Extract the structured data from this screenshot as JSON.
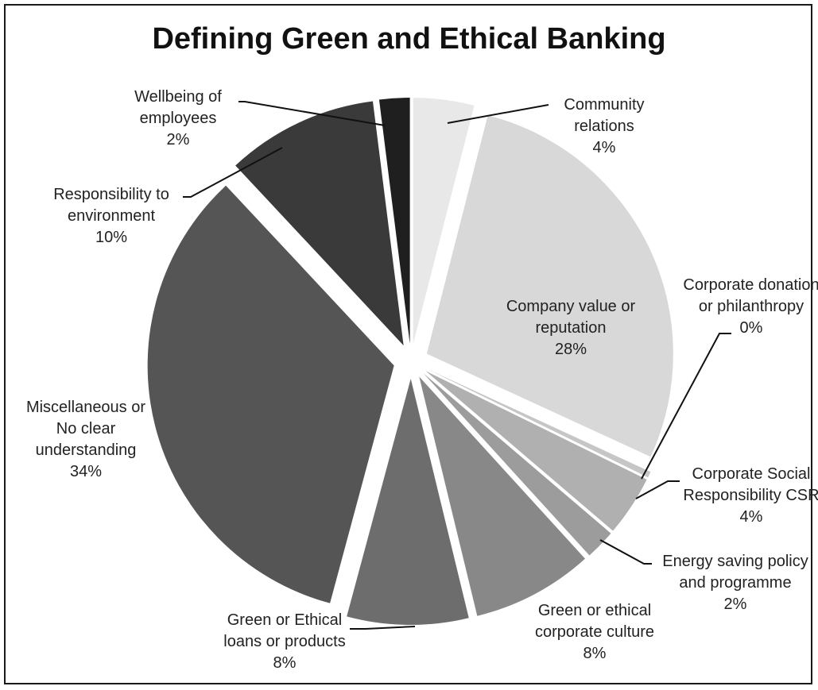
{
  "chart_data": {
    "type": "pie",
    "title": "Defining Green and Ethical Banking",
    "exploded": true,
    "slices": [
      {
        "label_lines": [
          "Community",
          "relations"
        ],
        "percent_label": "4%",
        "value": 4,
        "color": "#e8e8e8"
      },
      {
        "label_lines": [
          "Company value or",
          "reputation"
        ],
        "percent_label": "28%",
        "value": 28,
        "color": "#d8d8d8"
      },
      {
        "label_lines": [
          "Corporate donation",
          "or philanthropy"
        ],
        "percent_label": "0%",
        "value": 0.4,
        "color": "#c6c6c6"
      },
      {
        "label_lines": [
          "Corporate Social",
          "Responsibility CSR"
        ],
        "percent_label": "4%",
        "value": 4,
        "color": "#b0b0b0"
      },
      {
        "label_lines": [
          "Energy saving policy",
          "and programme"
        ],
        "percent_label": "2%",
        "value": 2,
        "color": "#9c9c9c"
      },
      {
        "label_lines": [
          "Green or ethical",
          "corporate culture"
        ],
        "percent_label": "8%",
        "value": 8,
        "color": "#888888"
      },
      {
        "label_lines": [
          "Green or Ethical",
          "loans or products"
        ],
        "percent_label": "8%",
        "value": 8,
        "color": "#6d6d6d"
      },
      {
        "label_lines": [
          "Miscellaneous or",
          "No clear",
          "understanding"
        ],
        "percent_label": "34%",
        "value": 34,
        "color": "#555555"
      },
      {
        "label_lines": [
          "Responsibility to",
          "environment"
        ],
        "percent_label": "10%",
        "value": 10,
        "color": "#3a3a3a"
      },
      {
        "label_lines": [
          "Wellbeing of",
          "employees"
        ],
        "percent_label": "2%",
        "value": 2,
        "color": "#1f1f1f"
      }
    ]
  }
}
